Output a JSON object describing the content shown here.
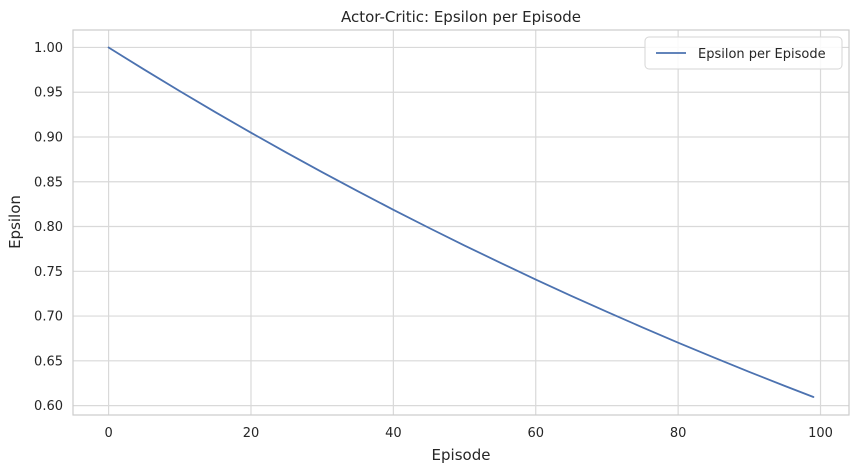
{
  "chart_data": {
    "type": "line",
    "title": "Actor-Critic: Epsilon per Episode",
    "xlabel": "Episode",
    "ylabel": "Epsilon",
    "xlim": [
      -5,
      104
    ],
    "ylim": [
      0.5895,
      1.0195
    ],
    "grid": true,
    "legend_position": "top-right",
    "xticks": [
      0,
      20,
      40,
      60,
      80,
      100
    ],
    "xtick_labels": [
      "0",
      "20",
      "40",
      "60",
      "80",
      "100"
    ],
    "yticks": [
      0.6,
      0.65,
      0.7,
      0.75,
      0.8,
      0.85,
      0.9,
      0.95,
      1.0
    ],
    "ytick_labels": [
      "0.60",
      "0.65",
      "0.70",
      "0.75",
      "0.80",
      "0.85",
      "0.90",
      "0.95",
      "1.00"
    ],
    "series": [
      {
        "name": "Epsilon per Episode",
        "color": "#4c72b0",
        "x": [
          0,
          5,
          10,
          15,
          20,
          25,
          30,
          35,
          40,
          45,
          50,
          55,
          60,
          65,
          70,
          75,
          80,
          85,
          90,
          95,
          99
        ],
        "y": [
          1.0,
          0.9753,
          0.9512,
          0.9277,
          0.9048,
          0.8825,
          0.8607,
          0.8395,
          0.8187,
          0.7985,
          0.7788,
          0.7596,
          0.7408,
          0.7225,
          0.7047,
          0.6873,
          0.6703,
          0.6538,
          0.6376,
          0.6219,
          0.6096
        ]
      }
    ]
  }
}
